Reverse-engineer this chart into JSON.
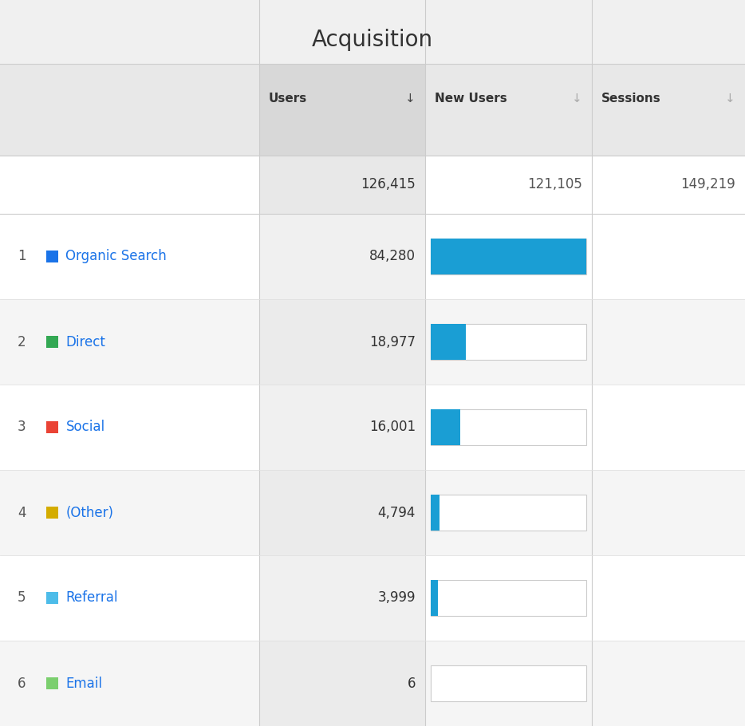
{
  "title": "Acquisition",
  "title_fontsize": 20,
  "title_color": "#333333",
  "columns": [
    "Users",
    "New Users",
    "Sessions"
  ],
  "col_arrow_dark": "↓",
  "col_arrow_light": "↓",
  "totals": [
    "126,415",
    "121,105",
    "149,219"
  ],
  "rows": [
    {
      "rank": 1,
      "dot_color": "#1a73e8",
      "label": "Organic Search",
      "users": "84,280",
      "new_users_val": 84280,
      "bar_color": "#1a9ed4"
    },
    {
      "rank": 2,
      "dot_color": "#33a853",
      "label": "Direct",
      "users": "18,977",
      "new_users_val": 18977,
      "bar_color": "#1a9ed4"
    },
    {
      "rank": 3,
      "dot_color": "#ea4335",
      "label": "Social",
      "users": "16,001",
      "new_users_val": 16001,
      "bar_color": "#1a9ed4"
    },
    {
      "rank": 4,
      "dot_color": "#d4ac00",
      "label": "(Other)",
      "users": "4,794",
      "new_users_val": 4794,
      "bar_color": "#1a9ed4"
    },
    {
      "rank": 5,
      "dot_color": "#4dbce9",
      "label": "Referral",
      "users": "3,999",
      "new_users_val": 3999,
      "bar_color": "#1a9ed4"
    },
    {
      "rank": 6,
      "dot_color": "#7bcf6e",
      "label": "Email",
      "users": "6",
      "new_users_val": 6,
      "bar_color": "#1a9ed4"
    }
  ],
  "bar_max": 84280,
  "label_color": "#1a73e8",
  "fig_bg": "#f0f0f0",
  "header_bg_left": "#e8e8e8",
  "header_bg_users": "#d8d8d8",
  "header_bg_other": "#e8e8e8",
  "total_bg_users": "#e8e8e8",
  "total_bg_other": "#f5f5f5",
  "row_bg_even": "#ffffff",
  "row_bg_odd": "#f5f5f5",
  "row_users_bg_even": "#f0f0f0",
  "row_users_bg_odd": "#ebebeb",
  "divider_color": "#cccccc",
  "row_divider_color": "#e0e0e0"
}
